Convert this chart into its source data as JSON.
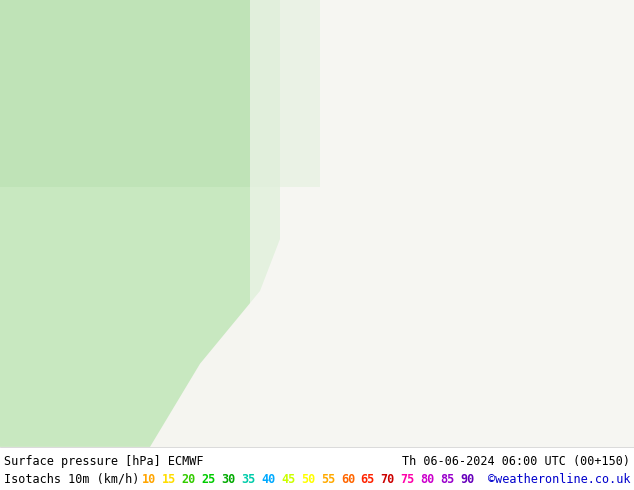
{
  "title_left": "Surface pressure [hPa] ECMWF",
  "title_right": "Th 06-06-2024 06:00 UTC (00+150)",
  "legend_label": "Isotachs 10m (km/h)",
  "watermark": "©weatheronline.co.uk",
  "isotach_values": [
    10,
    15,
    20,
    25,
    30,
    35,
    40,
    45,
    50,
    55,
    60,
    65,
    70,
    75,
    80,
    85,
    90
  ],
  "color_list": [
    "#ffa500",
    "#ffdd00",
    "#33cc00",
    "#00cc00",
    "#00aa00",
    "#00ccaa",
    "#00aaff",
    "#ccff00",
    "#ffff00",
    "#ffaa00",
    "#ff6600",
    "#ff2200",
    "#cc0000",
    "#ff00aa",
    "#cc00cc",
    "#9900cc",
    "#6600bb"
  ],
  "bg_color": "#ffffff",
  "text_color": "#000000",
  "label_fontsize": 8.5,
  "title_fontsize": 8.5,
  "watermark_color": "#0000cc",
  "fig_width": 6.34,
  "fig_height": 4.9,
  "dpi": 100
}
